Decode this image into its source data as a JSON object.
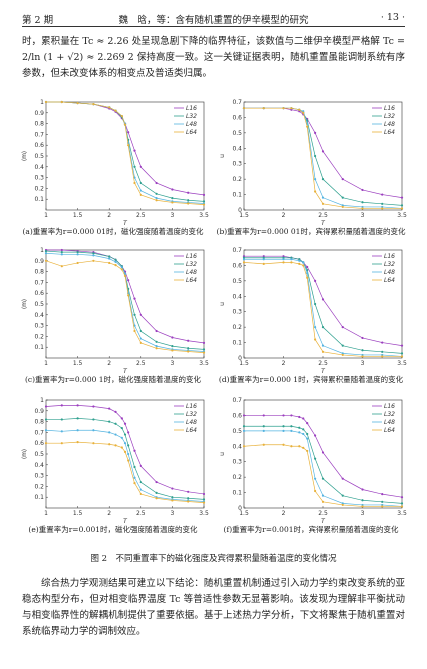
{
  "header": {
    "left": "第 2 期",
    "center": "魏　晗，等：含有随机重置的伊辛模型的研究",
    "right": "· 13 ·"
  },
  "paragraphs": [
    "时，累积量在 Tc ≈ 2.26 处呈现急剧下降的临界特征，该数值与二维伊辛模型严格解 Tc = 2/ln (1 + √2) ≈ 2.269 2 保持高度一致。这一关键证据表明，随机重置虽能调制系统有序参数，但未改变体系的相变点及普适类归属。",
    "综合热力学观测结果可建立以下结论：随机重置机制通过引入动力学约束改变系统的亚稳态构型分布，但对相变临界温度 Tc 等普适性参数无显著影响。该发现为理解非平衡扰动与相变临界性的解耦机制提供了重要依据。基于上述热力学分析，下文将聚焦于随机重置对系统临界动力学的调制效应。"
  ],
  "figure_caption": "图 2　不同重置率下的磁化强度及宾得累积量随着温度的变化情况",
  "chart_data": [
    {
      "type": "line",
      "caption": "(a)重置率为r=0.000 01时，磁化强度随着温度的变化",
      "xlabel": "T",
      "ylabel": "⟨m⟩",
      "xlim": [
        1,
        3.5
      ],
      "xticks": [
        1,
        1.5,
        2,
        2.5,
        3,
        3.5
      ],
      "ylim": [
        0,
        1
      ],
      "yticks": [
        0.1,
        0.2,
        0.3,
        0.4,
        0.5,
        0.6,
        0.7,
        0.8,
        0.9,
        1
      ],
      "x": [
        1,
        1.25,
        1.5,
        1.75,
        2,
        2.1,
        2.2,
        2.25,
        2.3,
        2.4,
        2.5,
        2.75,
        3,
        3.25,
        3.5
      ],
      "series": [
        {
          "name": "L16",
          "color": "#9b3fbf",
          "values": [
            1,
            1,
            0.99,
            0.98,
            0.94,
            0.91,
            0.85,
            0.8,
            0.72,
            0.55,
            0.4,
            0.25,
            0.19,
            0.16,
            0.14
          ]
        },
        {
          "name": "L32",
          "color": "#2fa08f",
          "values": [
            1,
            1,
            0.99,
            0.98,
            0.95,
            0.92,
            0.86,
            0.79,
            0.65,
            0.4,
            0.25,
            0.15,
            0.11,
            0.09,
            0.08
          ]
        },
        {
          "name": "L48",
          "color": "#55b4e0",
          "values": [
            1,
            1,
            0.99,
            0.98,
            0.95,
            0.92,
            0.87,
            0.8,
            0.62,
            0.3,
            0.18,
            0.11,
            0.08,
            0.07,
            0.06
          ]
        },
        {
          "name": "L64",
          "color": "#e8b13a",
          "values": [
            1,
            1,
            0.99,
            0.98,
            0.95,
            0.92,
            0.87,
            0.79,
            0.6,
            0.25,
            0.14,
            0.09,
            0.07,
            0.06,
            0.05
          ]
        }
      ]
    },
    {
      "type": "line",
      "caption": "(b)重置率为r=0.000 01时，宾得累积量随着温度的变化",
      "xlabel": "T",
      "ylabel": "u",
      "xlim": [
        1.5,
        3.5
      ],
      "xticks": [
        1.5,
        2,
        2.5,
        3,
        3.5
      ],
      "ylim": [
        0,
        0.7
      ],
      "yticks": [
        0,
        0.1,
        0.2,
        0.3,
        0.4,
        0.5,
        0.6,
        0.7
      ],
      "x": [
        1.5,
        1.75,
        2,
        2.1,
        2.2,
        2.25,
        2.3,
        2.4,
        2.5,
        2.75,
        3,
        3.25,
        3.5
      ],
      "series": [
        {
          "name": "L16",
          "color": "#9b3fbf",
          "values": [
            0.66,
            0.66,
            0.66,
            0.65,
            0.64,
            0.62,
            0.59,
            0.5,
            0.38,
            0.2,
            0.13,
            0.1,
            0.08
          ]
        },
        {
          "name": "L32",
          "color": "#2fa08f",
          "values": [
            0.66,
            0.66,
            0.66,
            0.66,
            0.65,
            0.63,
            0.58,
            0.35,
            0.2,
            0.08,
            0.05,
            0.04,
            0.03
          ]
        },
        {
          "name": "L48",
          "color": "#55b4e0",
          "values": [
            0.66,
            0.66,
            0.66,
            0.66,
            0.65,
            0.64,
            0.56,
            0.2,
            0.08,
            0.03,
            0.02,
            0.02,
            0.01
          ]
        },
        {
          "name": "L64",
          "color": "#e8b13a",
          "values": [
            0.66,
            0.66,
            0.66,
            0.66,
            0.65,
            0.63,
            0.54,
            0.12,
            0.04,
            0.02,
            0.01,
            0.01,
            0.01
          ]
        }
      ]
    },
    {
      "type": "line",
      "caption": "(c)重置率为r=0.000 1时，磁化强度随着温度的变化",
      "xlabel": "T",
      "ylabel": "⟨m⟩",
      "xlim": [
        1,
        3.5
      ],
      "xticks": [
        1,
        1.5,
        2,
        2.5,
        3,
        3.5
      ],
      "ylim": [
        0,
        1
      ],
      "yticks": [
        0.1,
        0.2,
        0.3,
        0.4,
        0.5,
        0.6,
        0.7,
        0.8,
        0.9,
        1
      ],
      "x": [
        1,
        1.25,
        1.5,
        1.75,
        2,
        2.1,
        2.2,
        2.25,
        2.3,
        2.4,
        2.5,
        2.75,
        3,
        3.25,
        3.5
      ],
      "series": [
        {
          "name": "L16",
          "color": "#9b3fbf",
          "values": [
            1,
            1,
            0.99,
            0.98,
            0.94,
            0.91,
            0.85,
            0.8,
            0.72,
            0.55,
            0.4,
            0.25,
            0.19,
            0.16,
            0.14
          ]
        },
        {
          "name": "L32",
          "color": "#2fa08f",
          "values": [
            0.99,
            0.98,
            0.98,
            0.97,
            0.94,
            0.91,
            0.85,
            0.78,
            0.64,
            0.4,
            0.25,
            0.15,
            0.11,
            0.09,
            0.08
          ]
        },
        {
          "name": "L48",
          "color": "#55b4e0",
          "values": [
            0.97,
            0.96,
            0.96,
            0.95,
            0.92,
            0.89,
            0.84,
            0.78,
            0.6,
            0.3,
            0.18,
            0.11,
            0.08,
            0.07,
            0.06
          ]
        },
        {
          "name": "L64",
          "color": "#e8b13a",
          "values": [
            0.9,
            0.85,
            0.88,
            0.9,
            0.88,
            0.86,
            0.82,
            0.76,
            0.58,
            0.25,
            0.14,
            0.09,
            0.07,
            0.06,
            0.05
          ]
        }
      ]
    },
    {
      "type": "line",
      "caption": "(d)重置率为r=0.000 1时，宾得累积量随着温度的变化",
      "xlabel": "T",
      "ylabel": "u",
      "xlim": [
        1.5,
        3.5
      ],
      "xticks": [
        1.5,
        2,
        2.5,
        3,
        3.5
      ],
      "ylim": [
        0,
        0.7
      ],
      "yticks": [
        0,
        0.1,
        0.2,
        0.3,
        0.4,
        0.5,
        0.6,
        0.7
      ],
      "x": [
        1.5,
        1.75,
        2,
        2.1,
        2.2,
        2.25,
        2.3,
        2.4,
        2.5,
        2.75,
        3,
        3.25,
        3.5
      ],
      "series": [
        {
          "name": "L16",
          "color": "#9b3fbf",
          "values": [
            0.66,
            0.66,
            0.66,
            0.65,
            0.64,
            0.62,
            0.59,
            0.5,
            0.38,
            0.2,
            0.13,
            0.1,
            0.08
          ]
        },
        {
          "name": "L32",
          "color": "#2fa08f",
          "values": [
            0.65,
            0.65,
            0.65,
            0.65,
            0.64,
            0.62,
            0.57,
            0.35,
            0.2,
            0.08,
            0.05,
            0.04,
            0.03
          ]
        },
        {
          "name": "L48",
          "color": "#55b4e0",
          "values": [
            0.64,
            0.64,
            0.64,
            0.64,
            0.63,
            0.62,
            0.55,
            0.2,
            0.08,
            0.03,
            0.02,
            0.02,
            0.01
          ]
        },
        {
          "name": "L64",
          "color": "#e8b13a",
          "values": [
            0.62,
            0.61,
            0.62,
            0.62,
            0.61,
            0.6,
            0.52,
            0.12,
            0.04,
            0.02,
            0.01,
            0.01,
            0.01
          ]
        }
      ]
    },
    {
      "type": "line",
      "caption": "(e)重置率为r=0.001时，磁化强度随着温度的变化",
      "xlabel": "T",
      "ylabel": "⟨m⟩",
      "xlim": [
        1,
        3.5
      ],
      "xticks": [
        1,
        1.5,
        2,
        2.5,
        3,
        3.5
      ],
      "ylim": [
        0,
        1
      ],
      "yticks": [
        0.1,
        0.2,
        0.3,
        0.4,
        0.5,
        0.6,
        0.7,
        0.8,
        0.9,
        1
      ],
      "x": [
        1,
        1.25,
        1.5,
        1.75,
        2,
        2.1,
        2.2,
        2.25,
        2.3,
        2.4,
        2.5,
        2.75,
        3,
        3.25,
        3.5
      ],
      "series": [
        {
          "name": "L16",
          "color": "#9b3fbf",
          "values": [
            0.94,
            0.95,
            0.95,
            0.94,
            0.92,
            0.89,
            0.83,
            0.78,
            0.7,
            0.53,
            0.39,
            0.24,
            0.18,
            0.15,
            0.13
          ]
        },
        {
          "name": "L32",
          "color": "#2fa08f",
          "values": [
            0.82,
            0.82,
            0.83,
            0.82,
            0.8,
            0.78,
            0.74,
            0.68,
            0.58,
            0.38,
            0.24,
            0.14,
            0.1,
            0.09,
            0.08
          ]
        },
        {
          "name": "L48",
          "color": "#55b4e0",
          "values": [
            0.72,
            0.71,
            0.72,
            0.72,
            0.7,
            0.68,
            0.65,
            0.6,
            0.5,
            0.28,
            0.17,
            0.1,
            0.08,
            0.07,
            0.06
          ]
        },
        {
          "name": "L64",
          "color": "#e8b13a",
          "values": [
            0.6,
            0.6,
            0.61,
            0.6,
            0.59,
            0.58,
            0.56,
            0.52,
            0.44,
            0.23,
            0.13,
            0.09,
            0.07,
            0.06,
            0.05
          ]
        }
      ]
    },
    {
      "type": "line",
      "caption": "(f)重置率为r=0.001时，宾得累积量随着温度的变化",
      "xlabel": "T",
      "ylabel": "u",
      "xlim": [
        1.5,
        3.5
      ],
      "xticks": [
        1.5,
        2,
        2.5,
        3,
        3.5
      ],
      "ylim": [
        0,
        0.7
      ],
      "yticks": [
        0,
        0.1,
        0.2,
        0.3,
        0.4,
        0.5,
        0.6,
        0.7
      ],
      "x": [
        1.5,
        1.75,
        2,
        2.1,
        2.2,
        2.25,
        2.3,
        2.4,
        2.5,
        2.75,
        3,
        3.25,
        3.5
      ],
      "series": [
        {
          "name": "L16",
          "color": "#9b3fbf",
          "values": [
            0.6,
            0.6,
            0.6,
            0.6,
            0.59,
            0.58,
            0.55,
            0.47,
            0.36,
            0.19,
            0.12,
            0.09,
            0.07
          ]
        },
        {
          "name": "L32",
          "color": "#2fa08f",
          "values": [
            0.53,
            0.53,
            0.53,
            0.53,
            0.52,
            0.51,
            0.48,
            0.32,
            0.19,
            0.08,
            0.05,
            0.04,
            0.03
          ]
        },
        {
          "name": "L48",
          "color": "#55b4e0",
          "values": [
            0.5,
            0.5,
            0.5,
            0.5,
            0.49,
            0.48,
            0.45,
            0.19,
            0.08,
            0.03,
            0.02,
            0.02,
            0.01
          ]
        },
        {
          "name": "L64",
          "color": "#e8b13a",
          "values": [
            0.4,
            0.41,
            0.41,
            0.4,
            0.4,
            0.39,
            0.37,
            0.11,
            0.04,
            0.02,
            0.01,
            0.01,
            0.01
          ]
        }
      ]
    }
  ]
}
